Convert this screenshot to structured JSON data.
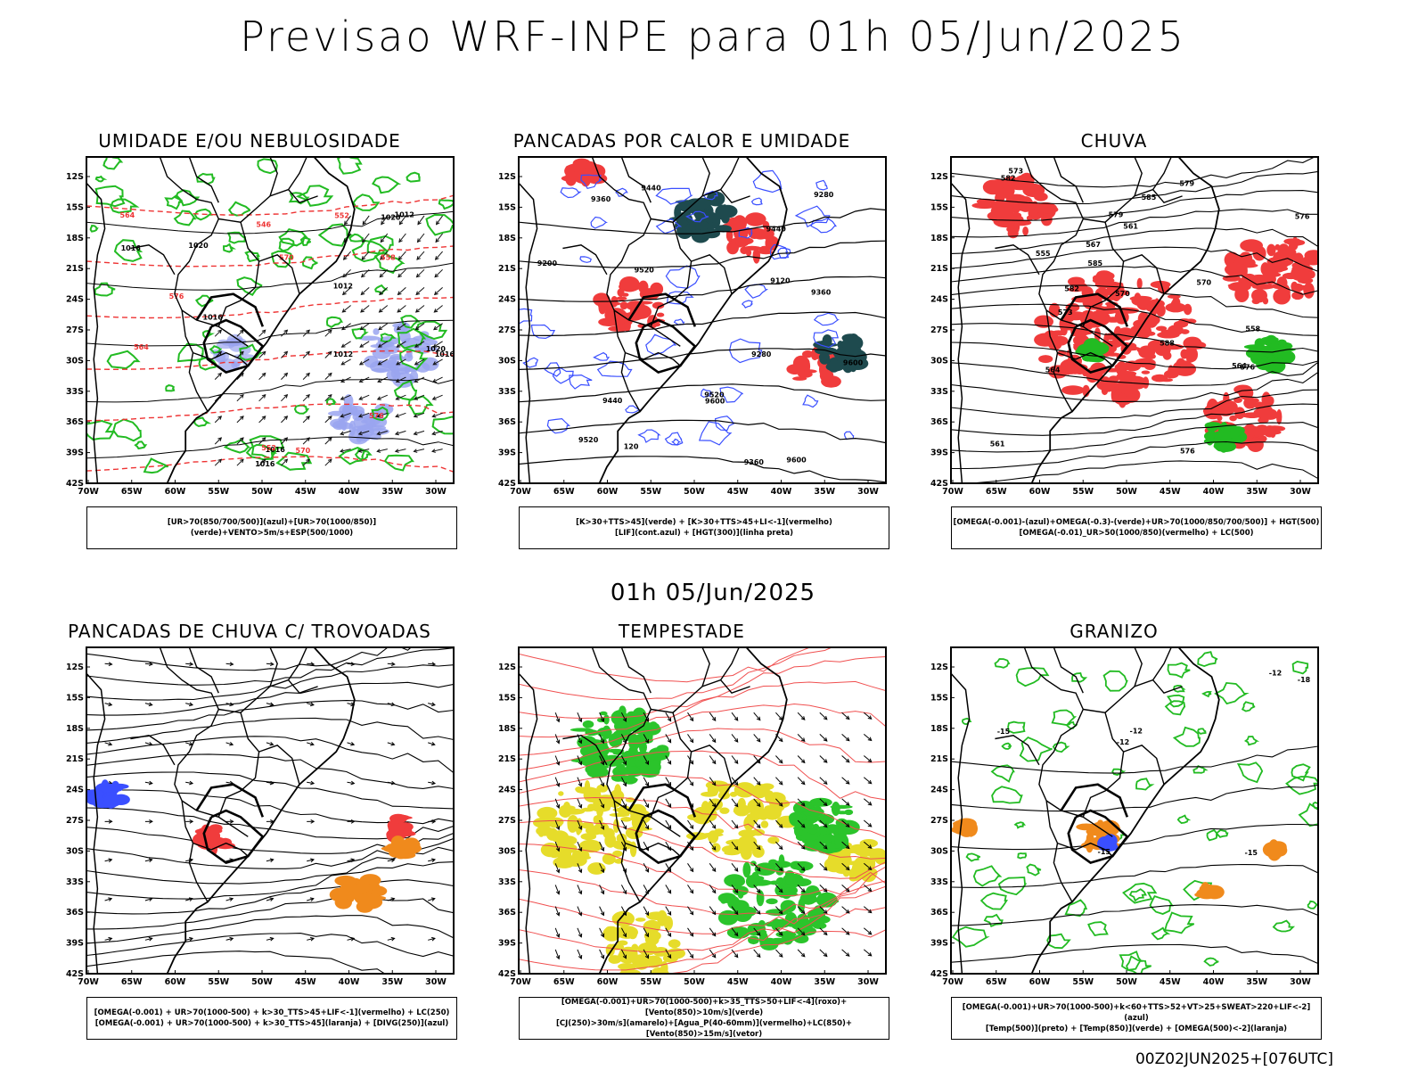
{
  "header": {
    "title": "Previsao WRF-INPE  para 01h 05/Jun/2025"
  },
  "mid_title": "01h 05/Jun/2025",
  "footer": "00Z02JUN2025+[076UTC]",
  "axes": {
    "lat_labels": [
      "12S",
      "15S",
      "18S",
      "21S",
      "24S",
      "27S",
      "30S",
      "33S",
      "36S",
      "39S",
      "42S"
    ],
    "lon_labels": [
      "70W",
      "65W",
      "60W",
      "55W",
      "50W",
      "45W",
      "40W",
      "35W",
      "30W"
    ]
  },
  "colors": {
    "red": "#f03c3c",
    "green": "#22bb22",
    "blue": "#3a4fff",
    "dark_teal": "#1e4a4e",
    "yellow": "#e6dc2a",
    "orange": "#f08a1c",
    "lightblue": "#9aa4f0"
  },
  "panels": [
    {
      "id": "umidade",
      "title": "UMIDADE E/OU NEBULOSIDADE",
      "legend": [
        "[UR>70(850/700/500)](azul)+[UR>70(1000/850)](verde)+VENTO>5m/s+ESP(500/1000)"
      ],
      "contour_labels": [
        "1016",
        "1020",
        "1012",
        "1016",
        "1020",
        "1016",
        "1012",
        "1016",
        "1012",
        "1016",
        "1020",
        "570",
        "576",
        "564",
        "558",
        "552",
        "546",
        "570",
        "552",
        "576",
        "564"
      ]
    },
    {
      "id": "pancadas_calor",
      "title": "PANCADAS POR CALOR E UMIDADE",
      "legend": [
        "[K>30+TTS>45](verde) + [K>30+TTS>45+LI<-1](vermelho)",
        "[LIF](cont.azul) + [HGT(300)](linha preta)"
      ],
      "contour_labels": [
        "9600",
        "9600",
        "9600",
        "9520",
        "9520",
        "9520",
        "9440",
        "9440",
        "9360",
        "9360",
        "9280",
        "9280",
        "9200",
        "9120",
        "120",
        "9360",
        "9440"
      ]
    },
    {
      "id": "chuva",
      "title": "CHUVA",
      "legend": [
        "[OMEGA(-0.001)-(azul)+OMEGA(-0.3)-(verde)+UR>70(1000/850/700/500)] + HGT(500)",
        "[OMEGA(-0.01)_UR>50(1000/850)(vermelho) + LC(500)"
      ],
      "contour_labels": [
        "585",
        "588",
        "585",
        "582",
        "579",
        "576",
        "573",
        "570",
        "567",
        "564",
        "561",
        "558",
        "555",
        "582",
        "579",
        "576",
        "573",
        "570",
        "576",
        "561",
        "564"
      ]
    },
    {
      "id": "pancadas_trovoadas",
      "title": "PANCADAS DE CHUVA C/ TROVOADAS",
      "legend": [
        "[OMEGA(-0.001) + UR>70(1000-500) + k>30_TTS>45+LIF<-1](vermelho) + LC(250)",
        "[OMEGA(-0.001) + UR>70(1000-500) + k>30_TTS>45](laranja) + [DIVG(250)](azul)"
      ],
      "contour_labels": []
    },
    {
      "id": "tempestade",
      "title": "TEMPESTADE",
      "legend": [
        "[OMEGA(-0.001)+UR>70(1000-500)+k>35_TTS>50+LIF<-4](roxo)+[Vento(850)>10m/s](verde)",
        "[CJ(250)>30m/s](amarelo)+[Agua_P(40-60mm)](vermelho)+LC(850)+[Vento(850)>15m/s](vetor)"
      ],
      "contour_labels": []
    },
    {
      "id": "granizo",
      "title": "GRANIZO",
      "legend": [
        "[OMEGA(-0.001)+UR>70(1000-500)+k<60+TTS>52+VT>25+SWEAT>220+LIF<-2](azul)",
        "[Temp(500)](preto) + [Temp(850)](verde) + [OMEGA(500)<-2](laranja)"
      ],
      "contour_labels": [
        "-12",
        "-15",
        "-12",
        "-12",
        "-18",
        "-15",
        "-15"
      ]
    }
  ]
}
